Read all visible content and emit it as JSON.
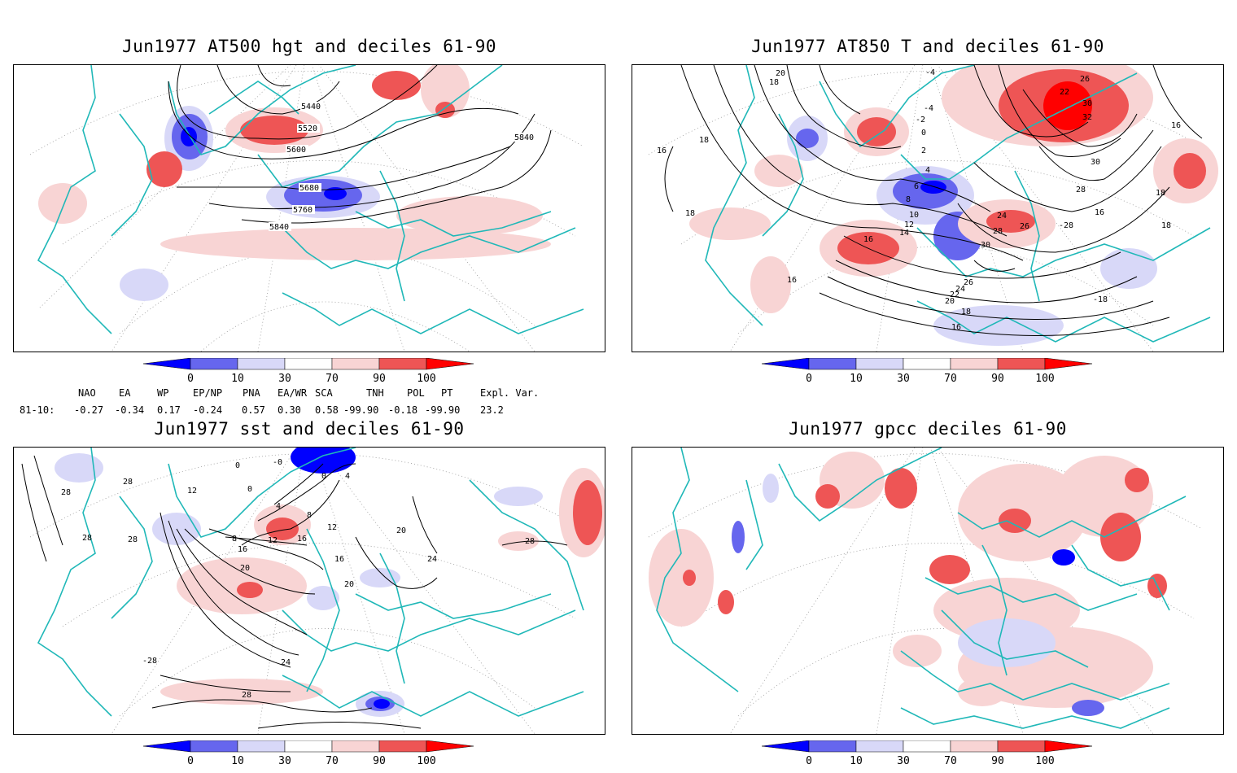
{
  "panels": [
    {
      "id": "p1",
      "title": "Jun1977 AT500 hgt and deciles 61-90",
      "contour_labels": [
        "5440",
        "5520",
        "5600",
        "5680",
        "5760",
        "5840",
        "5840"
      ]
    },
    {
      "id": "p2",
      "title": "Jun1977 AT850 T and deciles 61-90",
      "contour_labels": [
        "18",
        "20",
        "-4",
        "22",
        "26",
        "-4",
        "-2",
        "0",
        "2",
        "4",
        "6",
        "8",
        "10",
        "12",
        "14",
        "16",
        "16",
        "18",
        "30",
        "32",
        "30",
        "28",
        "24",
        "26",
        "28",
        "30",
        "26",
        "24",
        "22",
        "20",
        "18",
        "16",
        "16",
        "18",
        "16",
        "18",
        "18",
        "16",
        "-28",
        "-18"
      ]
    },
    {
      "id": "p3",
      "title": "Jun1977 sst and deciles 61-90",
      "contour_labels": [
        "28",
        "12",
        "0",
        "0",
        "-0",
        "0",
        "4",
        "4",
        "8",
        "12",
        "16",
        "8",
        "16",
        "20",
        "12",
        "16",
        "20",
        "20",
        "24",
        "28",
        "28",
        "28",
        "24",
        "28",
        "-28",
        "28"
      ]
    },
    {
      "id": "p4",
      "title": "Jun1977 gpcc deciles 61-90",
      "contour_labels": []
    }
  ],
  "colorbar": {
    "ticks": [
      "0",
      "10",
      "30",
      "70",
      "90",
      "100"
    ],
    "colors": {
      "strong_blue": "#0000ff",
      "mid_blue": "#6666ee",
      "light_blue": "#d8d8f8",
      "white": "#ffffff",
      "light_red": "#f8d4d4",
      "mid_red": "#ee5555",
      "strong_red": "#ff0000"
    }
  },
  "indices": {
    "headers": [
      "NAO",
      "EA",
      "WP",
      "EP/NP",
      "PNA",
      "EA/WR",
      "SCA",
      "TNH",
      "POL",
      "PT",
      "Expl. Var."
    ],
    "row_label": "81-10:",
    "values": [
      "-0.27",
      "-0.34",
      "0.17",
      "-0.24",
      "0.57",
      "0.30",
      "0.58",
      "-99.90",
      "-0.18",
      "-99.90",
      "23.2"
    ]
  },
  "map_colors": {
    "coast": "#20b8b8",
    "contour": "#000000",
    "grid": "#999999"
  }
}
